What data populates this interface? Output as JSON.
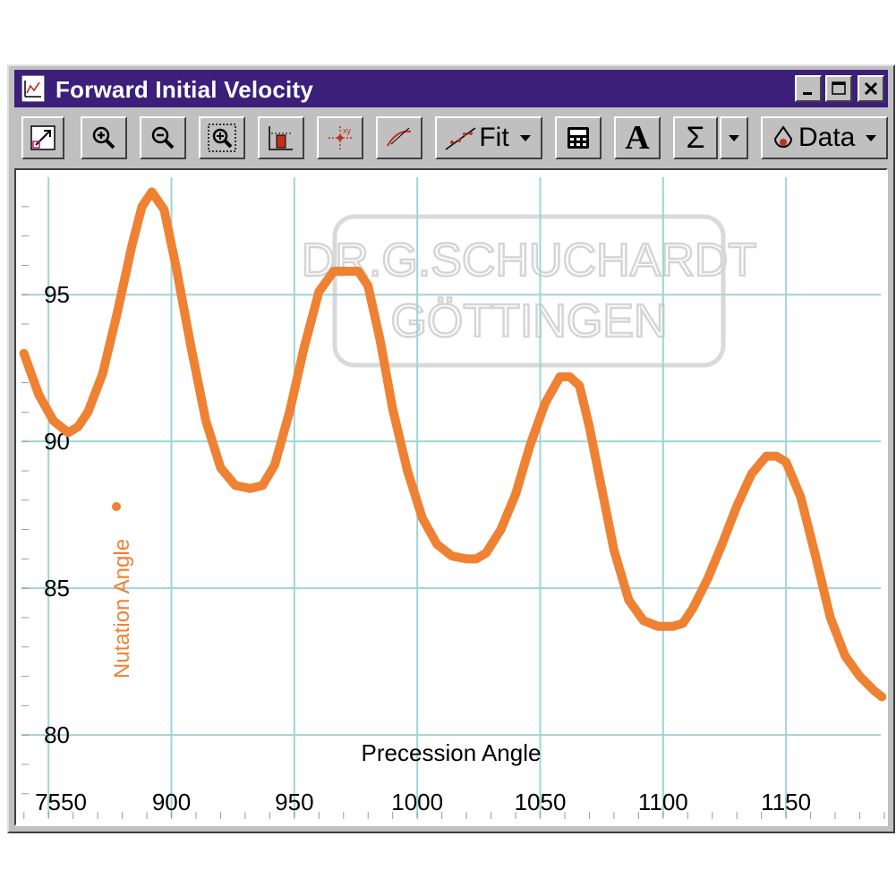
{
  "window": {
    "title": "Forward Initial Velocity",
    "controls": [
      "minimize",
      "maximize",
      "close"
    ]
  },
  "toolbar": {
    "fit_label": "Fit",
    "data_label": "Data",
    "text_label": "A",
    "sigma_label": "Σ"
  },
  "watermark": {
    "line1": "DR.G.SCHUCHARDT",
    "line2": "GÖTTINGEN"
  },
  "colors": {
    "title_bar": "#3b1f7a",
    "curve": "#ef8133",
    "grid": "#9fd4d8",
    "axis_text": "#000000"
  },
  "chart_data": {
    "type": "line",
    "title": "",
    "xlabel": "Precession Angle",
    "ylabel": "Nutation Angle",
    "xlim": [
      839,
      1190
    ],
    "ylim": [
      77.2,
      99
    ],
    "x_ticks": [
      900,
      950,
      1000,
      1050,
      1100,
      1150
    ],
    "x_tick_labels": [
      "900",
      "950",
      "1000",
      "1050",
      "1100",
      "1150"
    ],
    "y_ticks": [
      80,
      85,
      90,
      95
    ],
    "y_tick_labels": [
      "80",
      "85",
      "90",
      "95"
    ],
    "x_origin_label": "7550",
    "grid": true,
    "series": [
      {
        "x": [
          840,
          846,
          852,
          858,
          862,
          866,
          872,
          878,
          884,
          888,
          892,
          897,
          902,
          908,
          914,
          920,
          926,
          932,
          937,
          942,
          948,
          954,
          960,
          966,
          972,
          976,
          980,
          985,
          990,
          996,
          1002,
          1008,
          1014,
          1020,
          1024,
          1028,
          1034,
          1040,
          1046,
          1052,
          1058,
          1062,
          1066,
          1070,
          1075,
          1080,
          1086,
          1092,
          1098,
          1104,
          1108,
          1112,
          1118,
          1124,
          1130,
          1136,
          1142,
          1146,
          1150,
          1156,
          1162,
          1168,
          1174,
          1180,
          1186,
          1189
        ],
        "y": [
          93.0,
          91.6,
          90.7,
          90.3,
          90.5,
          91.0,
          92.3,
          94.4,
          96.7,
          98.0,
          98.5,
          97.9,
          95.9,
          93.2,
          90.7,
          89.1,
          88.5,
          88.4,
          88.5,
          89.2,
          91.0,
          93.2,
          95.1,
          95.8,
          95.8,
          95.8,
          95.3,
          93.4,
          91.1,
          89.0,
          87.4,
          86.5,
          86.1,
          86.0,
          86.0,
          86.2,
          87.0,
          88.2,
          89.9,
          91.3,
          92.2,
          92.2,
          91.9,
          90.5,
          88.4,
          86.3,
          84.6,
          83.9,
          83.7,
          83.7,
          83.8,
          84.3,
          85.3,
          86.5,
          87.8,
          88.9,
          89.5,
          89.5,
          89.3,
          88.1,
          86.1,
          84.0,
          82.7,
          82.0,
          81.5,
          81.3
        ]
      }
    ]
  }
}
